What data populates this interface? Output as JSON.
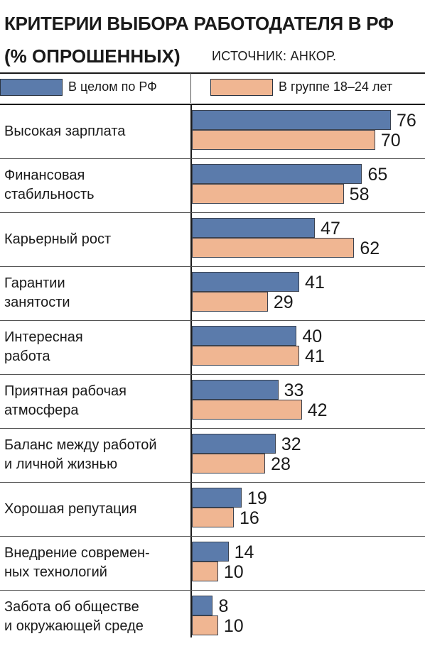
{
  "chart_data": {
    "type": "bar",
    "orientation": "horizontal",
    "title": "КРИТЕРИИ ВЫБОРА РАБОТОДАТЕЛЯ В РФ",
    "subtitle": "(% ОПРОШЕННЫХ)",
    "source": "ИСТОЧНИК: АНКОР.",
    "xlim": [
      0,
      76
    ],
    "grid": false,
    "legend_placement": "top",
    "categories": [
      "Высокая зарплата",
      "Финансовая\nстабильность",
      "Карьерный рост",
      "Гарантии\nзанятости",
      "Интересная\nработа",
      "Приятная рабочая\nатмосфера",
      "Баланс между работой\nи личной жизнью",
      "Хорошая репутация",
      "Внедрение современ-\nных технологий",
      "Забота об обществе\nи окружающей среде"
    ],
    "series": [
      {
        "name": "В целом по РФ",
        "color": "#5b7bab",
        "values": [
          76,
          65,
          47,
          41,
          40,
          33,
          32,
          19,
          14,
          8
        ]
      },
      {
        "name": "В группе 18–24 лет",
        "color": "#f0b692",
        "values": [
          70,
          58,
          62,
          29,
          41,
          42,
          28,
          16,
          10,
          10
        ]
      }
    ]
  }
}
